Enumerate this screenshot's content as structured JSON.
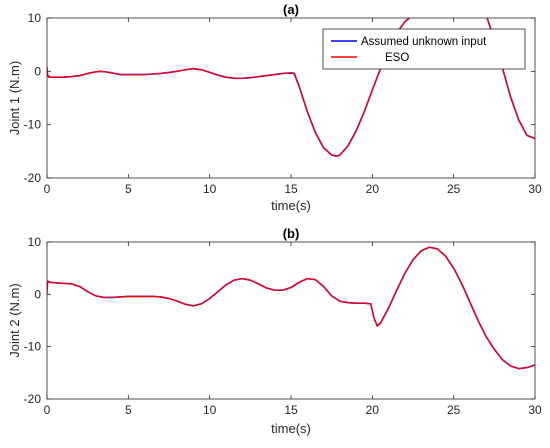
{
  "chart_data": [
    {
      "type": "line",
      "title": "(a)",
      "xlabel": "time(s)",
      "ylabel": "Joint 1 (N.m)",
      "xlim": [
        0,
        30
      ],
      "ylim": [
        -20,
        10
      ],
      "xticks": [
        0,
        5,
        10,
        15,
        20,
        25,
        30
      ],
      "yticks": [
        10,
        0,
        -10,
        -20
      ],
      "grid": false,
      "legend_position": "top-right",
      "x": [
        0,
        0.05,
        0.1,
        0.15,
        0.2,
        0.25,
        0.3,
        1,
        1.5,
        2,
        2.5,
        3,
        3.3,
        3.6,
        4,
        4.5,
        5,
        5.5,
        6,
        6.5,
        7,
        7.5,
        8,
        8.5,
        9,
        9.5,
        10,
        10.5,
        11,
        11.5,
        12,
        12.5,
        13,
        13.5,
        14,
        14.5,
        15,
        15.2,
        15.5,
        16,
        16.5,
        17,
        17.5,
        17.8,
        18,
        18.5,
        19,
        19.5,
        20,
        20.5,
        21,
        21.5,
        22,
        22.5,
        23,
        27,
        27.5,
        28,
        28.5,
        29,
        29.5,
        30
      ],
      "series": [
        {
          "name": "Assumed unknown input",
          "color": "#0000ff",
          "values": [
            -0.5,
            -0.8,
            -0.9,
            -1.0,
            -1.1,
            -1.1,
            -1.1,
            -1.1,
            -1.0,
            -0.8,
            -0.4,
            -0.1,
            0.0,
            -0.1,
            -0.3,
            -0.6,
            -0.6,
            -0.6,
            -0.6,
            -0.5,
            -0.4,
            -0.2,
            0.0,
            0.3,
            0.5,
            0.3,
            -0.2,
            -0.7,
            -1.1,
            -1.3,
            -1.3,
            -1.2,
            -1.0,
            -0.8,
            -0.6,
            -0.4,
            -0.3,
            -0.4,
            -2.8,
            -7.5,
            -11.5,
            -14.3,
            -15.7,
            -15.9,
            -15.7,
            -14.0,
            -11.2,
            -7.6,
            -3.5,
            0.5,
            4.2,
            7.2,
            9.3,
            10.6,
            11.0,
            10.5,
            6.0,
            0.6,
            -4.8,
            -9.1,
            -12.0,
            -12.6
          ]
        },
        {
          "name": "ESO",
          "color": "#ff0000",
          "values": [
            0.8,
            -0.9,
            -1.1,
            -1.0,
            -1.1,
            -1.1,
            -1.1,
            -1.1,
            -1.0,
            -0.8,
            -0.4,
            -0.1,
            0.0,
            -0.1,
            -0.3,
            -0.6,
            -0.6,
            -0.6,
            -0.6,
            -0.5,
            -0.4,
            -0.2,
            0.0,
            0.3,
            0.5,
            0.3,
            -0.2,
            -0.7,
            -1.1,
            -1.3,
            -1.3,
            -1.2,
            -1.0,
            -0.8,
            -0.6,
            -0.4,
            -0.3,
            -0.5,
            -2.8,
            -7.5,
            -11.5,
            -14.3,
            -15.7,
            -15.9,
            -15.7,
            -14.0,
            -11.2,
            -7.6,
            -3.5,
            0.5,
            4.2,
            7.2,
            9.3,
            10.6,
            11.0,
            10.5,
            6.0,
            0.6,
            -4.8,
            -9.1,
            -12.0,
            -12.6
          ]
        }
      ]
    },
    {
      "type": "line",
      "title": "(b)",
      "xlabel": "time(s)",
      "ylabel": "Joint 2 (N.m)",
      "xlim": [
        0,
        30
      ],
      "ylim": [
        -20,
        10
      ],
      "xticks": [
        0,
        5,
        10,
        15,
        20,
        25,
        30
      ],
      "yticks": [
        10,
        0,
        -10,
        -20
      ],
      "grid": false,
      "x": [
        0,
        0.05,
        0.1,
        0.2,
        0.5,
        1,
        1.5,
        2,
        2.5,
        3,
        3.5,
        4,
        4.5,
        5,
        5.5,
        6,
        6.5,
        7,
        7.5,
        8,
        8.5,
        9,
        9.5,
        10,
        10.5,
        11,
        11.5,
        12,
        12.5,
        13,
        13.5,
        14,
        14.5,
        15,
        15.5,
        16,
        16.5,
        17,
        17.5,
        18,
        18.5,
        19,
        19.5,
        19.9,
        20.1,
        20.3,
        20.5,
        21,
        21.5,
        22,
        22.5,
        23,
        23.5,
        24,
        24.5,
        25,
        25.5,
        26,
        26.5,
        27,
        27.5,
        28,
        28.5,
        29,
        29.5,
        30
      ],
      "series": [
        {
          "name": "Assumed unknown input",
          "color": "#0000ff",
          "values": [
            2.5,
            2.5,
            2.4,
            2.3,
            2.2,
            2.1,
            2.0,
            1.5,
            0.5,
            -0.3,
            -0.6,
            -0.6,
            -0.5,
            -0.4,
            -0.4,
            -0.4,
            -0.4,
            -0.5,
            -0.8,
            -1.3,
            -1.9,
            -2.2,
            -1.8,
            -0.8,
            0.5,
            1.8,
            2.7,
            3.0,
            2.7,
            2.0,
            1.2,
            0.8,
            0.8,
            1.3,
            2.3,
            3.0,
            2.8,
            1.5,
            -0.3,
            -1.3,
            -1.6,
            -1.7,
            -1.7,
            -1.8,
            -4.5,
            -6.0,
            -5.5,
            -2.6,
            0.8,
            4.0,
            6.6,
            8.3,
            9.0,
            8.7,
            7.3,
            5.0,
            2.0,
            -1.5,
            -5.0,
            -8.1,
            -10.5,
            -12.5,
            -13.7,
            -14.2,
            -14.0,
            -13.5
          ]
        },
        {
          "name": "ESO",
          "color": "#ff0000",
          "values": [
            0.0,
            2.5,
            2.5,
            2.3,
            2.2,
            2.1,
            2.0,
            1.5,
            0.5,
            -0.3,
            -0.6,
            -0.6,
            -0.5,
            -0.4,
            -0.4,
            -0.4,
            -0.4,
            -0.5,
            -0.8,
            -1.3,
            -1.9,
            -2.2,
            -1.8,
            -0.8,
            0.5,
            1.8,
            2.7,
            3.0,
            2.7,
            2.0,
            1.2,
            0.8,
            0.8,
            1.3,
            2.3,
            3.0,
            2.8,
            1.5,
            -0.3,
            -1.3,
            -1.6,
            -1.7,
            -1.7,
            -1.8,
            -4.5,
            -6.1,
            -5.5,
            -2.6,
            0.8,
            4.0,
            6.6,
            8.3,
            9.0,
            8.7,
            7.3,
            5.0,
            2.0,
            -1.5,
            -5.0,
            -8.1,
            -10.5,
            -12.5,
            -13.7,
            -14.2,
            -14.0,
            -13.5
          ]
        }
      ]
    }
  ]
}
